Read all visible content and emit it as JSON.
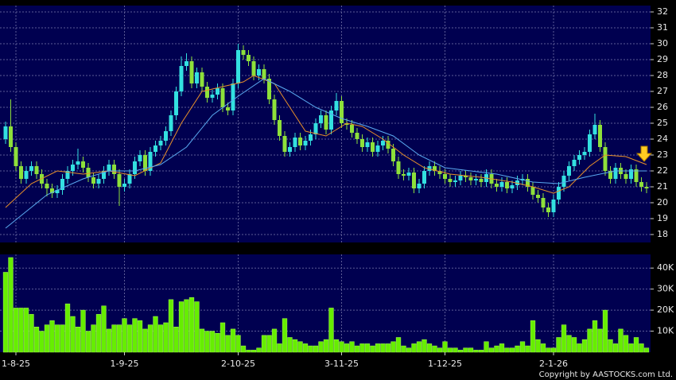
{
  "chart_data": [
    {
      "type": "candlestick",
      "categories": [
        null,
        null,
        "1-8-25",
        null,
        null,
        null,
        null,
        null,
        null,
        null,
        null,
        null,
        null,
        null,
        null,
        null,
        null,
        null,
        null,
        null,
        null,
        null,
        null,
        "1-9-25",
        null,
        null,
        null,
        null,
        null,
        null,
        null,
        null,
        null,
        null,
        null,
        null,
        null,
        null,
        null,
        null,
        null,
        null,
        null,
        null,
        null,
        "2-10-25",
        null,
        null,
        null,
        null,
        null,
        null,
        null,
        null,
        null,
        null,
        null,
        null,
        null,
        null,
        null,
        null,
        null,
        null,
        null,
        "3-11-25",
        null,
        null,
        null,
        null,
        null,
        null,
        null,
        null,
        null,
        null,
        null,
        null,
        null,
        null,
        null,
        null,
        null,
        null,
        null,
        "1-12-25",
        null,
        null,
        null,
        null,
        null,
        null,
        null,
        null,
        null,
        null,
        null,
        null,
        null,
        null,
        null,
        null,
        null,
        null,
        null,
        null,
        "2-1-26",
        null,
        null,
        null,
        null,
        null,
        null,
        null,
        null,
        null,
        null,
        null,
        null,
        null,
        null,
        null,
        null,
        null,
        null
      ],
      "open": [
        24.0,
        24.8,
        23.5,
        22.3,
        21.5,
        22.0,
        22.3,
        21.8,
        21.2,
        20.9,
        20.6,
        20.8,
        21.5,
        22.0,
        22.4,
        22.6,
        22.2,
        21.6,
        21.2,
        21.5,
        22.0,
        22.4,
        21.8,
        21.0,
        21.2,
        21.8,
        22.6,
        23.0,
        22.0,
        23.2,
        23.6,
        23.9,
        24.5,
        25.5,
        27.0,
        28.6,
        28.9,
        27.5,
        28.2,
        27.3,
        26.6,
        26.8,
        27.2,
        26.0,
        25.8,
        27.5,
        29.6,
        29.3,
        28.9,
        28.0,
        28.4,
        27.8,
        26.5,
        25.2,
        24.2,
        23.2,
        23.5,
        24.1,
        23.6,
        23.9,
        24.3,
        25.0,
        25.5,
        24.6,
        25.8,
        26.4,
        25.0,
        24.9,
        24.4,
        24.0,
        23.5,
        23.8,
        23.2,
        23.6,
        23.9,
        23.4,
        22.6,
        21.8,
        21.7,
        21.9,
        20.9,
        21.2,
        22.0,
        22.3,
        22.0,
        21.8,
        21.5,
        21.3,
        21.4,
        21.7,
        21.6,
        21.4,
        21.5,
        21.3,
        21.8,
        21.2,
        21.0,
        21.3,
        20.9,
        21.1,
        21.4,
        21.5,
        21.0,
        20.5,
        20.3,
        19.7,
        19.4,
        20.2,
        21.0,
        21.7,
        22.3,
        22.7,
        23.0,
        23.2,
        24.3,
        24.9,
        23.5,
        22.0,
        21.5,
        22.2,
        21.8,
        21.5,
        22.1,
        21.3,
        21.0
      ],
      "high": [
        25.1,
        26.5,
        23.8,
        22.6,
        22.3,
        22.6,
        22.6,
        22.1,
        21.5,
        21.2,
        21.1,
        21.8,
        22.3,
        22.7,
        23.4,
        22.9,
        22.5,
        21.9,
        21.8,
        22.3,
        22.7,
        22.7,
        22.1,
        21.5,
        22.1,
        22.9,
        23.3,
        23.3,
        23.5,
        23.9,
        24.2,
        24.8,
        25.8,
        27.3,
        29.2,
        29.4,
        29.2,
        28.5,
        28.5,
        27.6,
        27.1,
        27.5,
        27.5,
        26.3,
        27.8,
        30.0,
        29.9,
        29.6,
        29.2,
        28.7,
        28.7,
        28.1,
        26.8,
        25.5,
        24.5,
        23.8,
        24.4,
        24.4,
        24.2,
        24.6,
        25.3,
        25.8,
        25.8,
        26.1,
        26.9,
        26.7,
        25.3,
        25.2,
        24.7,
        24.3,
        24.1,
        24.1,
        23.9,
        24.2,
        24.2,
        23.7,
        22.9,
        22.1,
        22.2,
        22.2,
        21.5,
        22.3,
        22.6,
        22.6,
        22.3,
        22.1,
        21.8,
        21.7,
        22.0,
        22.0,
        21.9,
        21.8,
        21.8,
        22.1,
        22.1,
        21.5,
        21.6,
        21.6,
        21.4,
        21.7,
        21.8,
        21.8,
        21.3,
        20.8,
        20.6,
        20.0,
        20.5,
        21.3,
        22.0,
        22.6,
        23.0,
        23.3,
        23.5,
        24.6,
        25.6,
        25.2,
        23.8,
        22.3,
        22.5,
        22.5,
        22.1,
        22.4,
        22.4,
        21.6,
        21.3
      ],
      "low": [
        23.7,
        23.2,
        22.0,
        21.2,
        21.2,
        21.7,
        21.5,
        20.9,
        20.4,
        20.3,
        20.3,
        20.5,
        21.2,
        21.7,
        22.1,
        21.9,
        21.3,
        20.9,
        20.9,
        21.2,
        21.7,
        21.5,
        19.8,
        20.7,
        20.9,
        21.5,
        22.3,
        21.7,
        21.7,
        22.9,
        23.3,
        23.6,
        24.2,
        25.2,
        26.7,
        28.3,
        27.2,
        27.2,
        27.0,
        26.3,
        26.3,
        26.5,
        25.7,
        25.5,
        25.5,
        27.2,
        29.0,
        28.6,
        27.7,
        27.7,
        27.5,
        26.2,
        24.9,
        23.9,
        22.9,
        22.9,
        23.2,
        23.3,
        23.3,
        23.6,
        24.0,
        24.7,
        24.3,
        24.3,
        25.5,
        24.7,
        24.6,
        24.1,
        23.7,
        23.2,
        23.2,
        22.9,
        22.9,
        23.3,
        23.1,
        22.3,
        21.5,
        21.4,
        21.4,
        20.6,
        20.6,
        20.9,
        21.7,
        21.7,
        21.5,
        21.2,
        21.0,
        21.0,
        21.1,
        21.3,
        21.1,
        21.1,
        21.0,
        21.0,
        20.9,
        20.7,
        20.7,
        20.6,
        20.6,
        20.8,
        21.1,
        20.7,
        20.2,
        20.0,
        19.4,
        19.1,
        19.1,
        19.9,
        20.7,
        21.4,
        22.0,
        22.4,
        22.7,
        22.9,
        24.0,
        23.2,
        21.7,
        21.2,
        21.2,
        21.5,
        21.2,
        21.2,
        21.0,
        20.7,
        20.6
      ],
      "close": [
        24.8,
        23.5,
        22.3,
        21.5,
        22.0,
        22.3,
        21.8,
        21.2,
        20.9,
        20.6,
        20.8,
        21.5,
        22.0,
        22.4,
        22.6,
        22.2,
        21.6,
        21.2,
        21.5,
        22.0,
        22.4,
        21.8,
        21.0,
        21.2,
        21.8,
        22.6,
        23.0,
        22.0,
        23.2,
        23.6,
        23.9,
        24.5,
        25.5,
        27.0,
        28.6,
        28.9,
        27.5,
        28.2,
        27.3,
        26.6,
        26.8,
        27.2,
        26.0,
        25.8,
        27.5,
        29.6,
        29.3,
        28.9,
        28.0,
        28.4,
        27.8,
        26.5,
        25.2,
        24.2,
        23.2,
        23.5,
        24.1,
        23.6,
        23.9,
        24.3,
        25.0,
        25.5,
        24.6,
        25.8,
        26.4,
        25.0,
        24.9,
        24.4,
        24.0,
        23.5,
        23.8,
        23.2,
        23.6,
        23.9,
        23.4,
        22.6,
        21.8,
        21.7,
        21.9,
        20.9,
        21.2,
        22.0,
        22.3,
        22.0,
        21.8,
        21.5,
        21.3,
        21.4,
        21.7,
        21.6,
        21.4,
        21.5,
        21.3,
        21.8,
        21.2,
        21.0,
        21.3,
        20.9,
        21.1,
        21.4,
        21.5,
        21.0,
        20.5,
        20.3,
        19.7,
        19.4,
        20.2,
        21.0,
        21.7,
        22.3,
        22.7,
        23.0,
        23.2,
        24.3,
        24.9,
        23.5,
        22.0,
        21.5,
        22.2,
        21.8,
        21.5,
        22.1,
        21.3,
        21.0,
        20.9
      ],
      "up_color": "#33e0e0",
      "down_color": "#8ee03a",
      "series": [
        {
          "color": "#e8902a",
          "x": [
            0,
            5,
            10,
            15,
            20,
            25,
            30,
            34,
            38,
            42,
            46,
            48,
            52,
            55,
            58,
            62,
            66,
            69,
            73,
            77,
            81,
            86,
            92,
            98,
            102,
            106,
            109,
            113,
            116,
            120,
            124
          ],
          "values": [
            19.7,
            21.2,
            22.0,
            21.8,
            22.0,
            21.7,
            22.5,
            25.0,
            27.0,
            27.3,
            27.6,
            28.0,
            27.5,
            26.0,
            24.5,
            24.2,
            25.0,
            24.8,
            24.0,
            23.0,
            22.2,
            21.8,
            21.6,
            21.3,
            21.0,
            20.6,
            21.0,
            22.3,
            23.0,
            22.9,
            22.4
          ]
        },
        {
          "color": "#5aaaf0",
          "x": [
            0,
            8,
            15,
            20,
            25,
            30,
            35,
            40,
            45,
            50,
            55,
            60,
            65,
            70,
            75,
            80,
            85,
            95,
            102,
            107,
            112,
            118,
            124
          ],
          "values": [
            18.4,
            20.5,
            21.5,
            22.0,
            22.0,
            22.4,
            23.5,
            25.5,
            26.7,
            27.8,
            27.0,
            26.0,
            25.3,
            24.8,
            24.2,
            23.0,
            22.2,
            21.8,
            21.3,
            21.2,
            21.6,
            22.0,
            22.0
          ]
        }
      ],
      "ylim": [
        17.5,
        32.4
      ],
      "yticks": [
        18,
        19,
        20,
        21,
        22,
        23,
        24,
        25,
        26,
        27,
        28,
        29,
        30,
        31,
        32
      ],
      "grid": true
    },
    {
      "type": "bar",
      "color": "#66ee00",
      "values": [
        38000,
        45000,
        21000,
        21000,
        21000,
        18000,
        12000,
        10000,
        13000,
        15000,
        13000,
        13000,
        23000,
        17000,
        12000,
        20000,
        10000,
        13000,
        18000,
        22000,
        11000,
        13000,
        13000,
        16000,
        13000,
        16000,
        15000,
        11000,
        13000,
        17000,
        13000,
        14000,
        25000,
        12000,
        24000,
        25000,
        26000,
        24000,
        11000,
        10000,
        10000,
        9000,
        14000,
        8000,
        11000,
        8000,
        3000,
        1000,
        1000,
        2000,
        8000,
        8000,
        11000,
        4000,
        16000,
        7000,
        6000,
        5000,
        4000,
        3000,
        3000,
        5000,
        6000,
        21000,
        6000,
        5000,
        4000,
        5000,
        3000,
        4000,
        4000,
        3000,
        4000,
        4000,
        4000,
        5000,
        7000,
        3000,
        2000,
        4000,
        5000,
        6000,
        4000,
        3000,
        2000,
        5000,
        2000,
        2000,
        1000,
        2000,
        2000,
        1000,
        1000,
        5000,
        2000,
        3000,
        4000,
        2000,
        2000,
        3000,
        5000,
        3000,
        15000,
        6000,
        4000,
        2000,
        2000,
        7000,
        13000,
        8000,
        7000,
        4000,
        6000,
        11000,
        15000,
        11000,
        20000,
        6000,
        4000,
        11000,
        8000,
        4000,
        7000,
        4000,
        2000
      ],
      "ylim": [
        0,
        46500
      ],
      "yticks": [
        {
          "value": 10000,
          "label": "10K"
        },
        {
          "value": 20000,
          "label": "20K"
        },
        {
          "value": 30000,
          "label": "30K"
        },
        {
          "value": 40000,
          "label": "40K"
        }
      ],
      "grid": true
    }
  ],
  "copyright": "Copyright by AASTOCKS.com Ltd."
}
